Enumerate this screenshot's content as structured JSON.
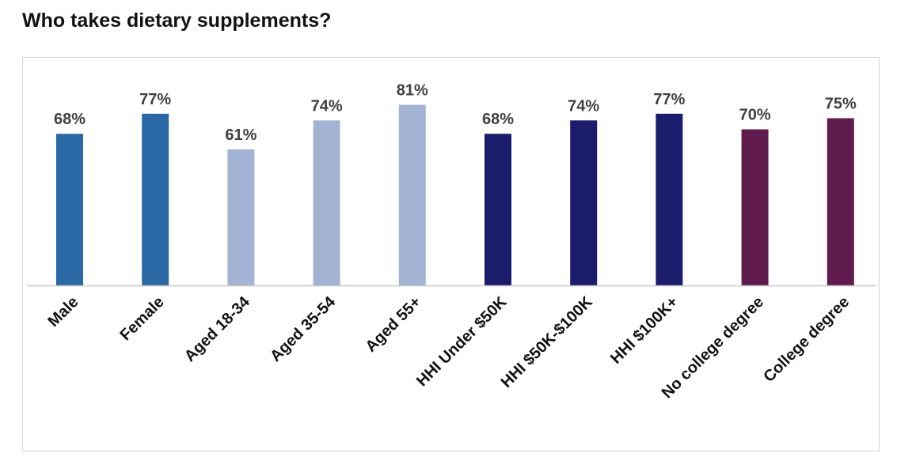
{
  "page": {
    "title": "Who takes dietary supplements?"
  },
  "chart_data": {
    "type": "bar",
    "title": "Who takes dietary supplements?",
    "xlabel": "",
    "ylabel": "",
    "ylim": [
      0,
      100
    ],
    "grid": false,
    "categories": [
      "Male",
      "Female",
      "Aged 18-34",
      "Aged 35-54",
      "Aged 55+",
      "HHI Under $50K",
      "HHI $50K-$100K",
      "HHI $100K+",
      "No college degree",
      "College degree"
    ],
    "values": [
      68,
      77,
      61,
      74,
      81,
      68,
      74,
      77,
      70,
      75
    ],
    "value_labels": [
      "68%",
      "77%",
      "61%",
      "74%",
      "81%",
      "68%",
      "74%",
      "77%",
      "70%",
      "75%"
    ],
    "colors": [
      "#2b68a6",
      "#2b68a6",
      "#a3b3d3",
      "#a3b3d3",
      "#a3b3d3",
      "#1b1c6b",
      "#1b1c6b",
      "#1b1c6b",
      "#5f1a4e",
      "#5f1a4e"
    ],
    "baseline_color": "#c8c8c8"
  }
}
